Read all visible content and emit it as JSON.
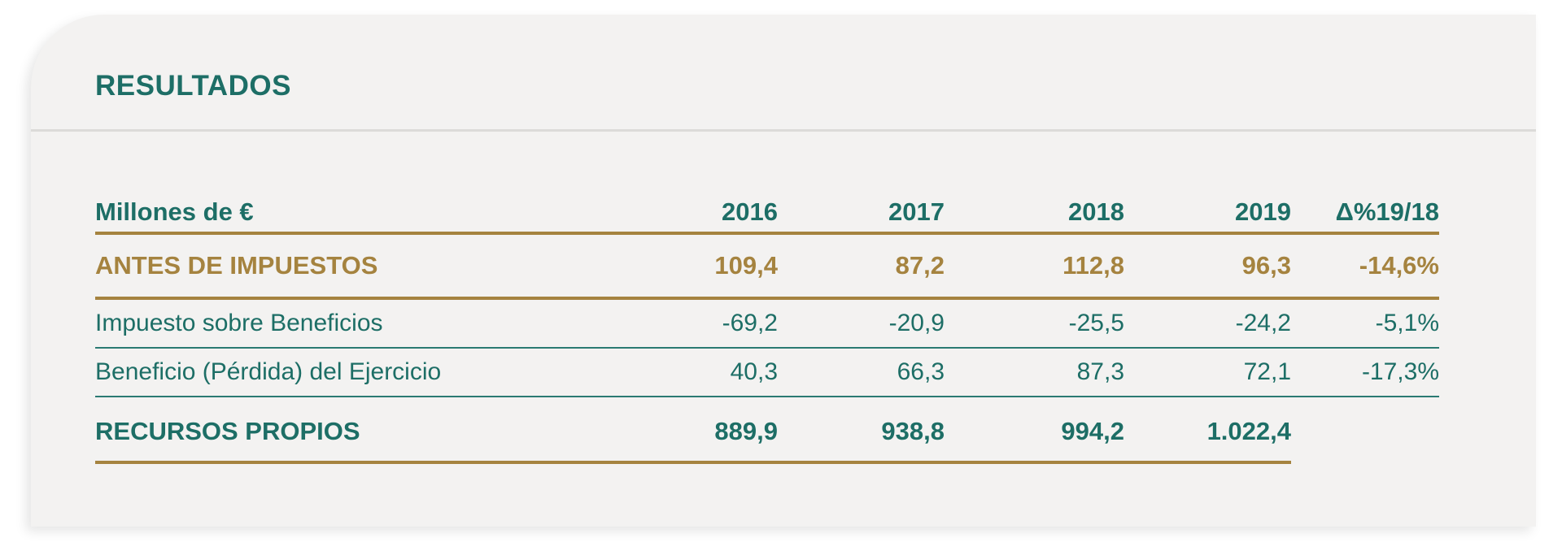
{
  "section": {
    "title": "RESULTADOS"
  },
  "table": {
    "columns": [
      "Millones de €",
      "2016",
      "2017",
      "2018",
      "2019",
      "Δ%19/18"
    ],
    "rows": [
      {
        "label": "ANTES DE IMPUESTOS",
        "values": [
          "109,4",
          "87,2",
          "112,8",
          "96,3",
          "-14,6%"
        ],
        "style": "gold"
      },
      {
        "label": "Impuesto sobre Beneficios",
        "values": [
          "-69,2",
          "-20,9",
          "-25,5",
          "-24,2",
          "-5,1%"
        ],
        "style": "light"
      },
      {
        "label": "Beneficio (Pérdida) del Ejercicio",
        "values": [
          "40,3",
          "66,3",
          "87,3",
          "72,1",
          "-17,3%"
        ],
        "style": "light"
      },
      {
        "label": "RECURSOS PROPIOS",
        "values": [
          "889,9",
          "938,8",
          "994,2",
          "1.022,4",
          ""
        ],
        "style": "teal"
      }
    ]
  },
  "colors": {
    "teal": "#1d6e66",
    "gold": "#a5833f",
    "card_background": "#f3f2f1"
  }
}
